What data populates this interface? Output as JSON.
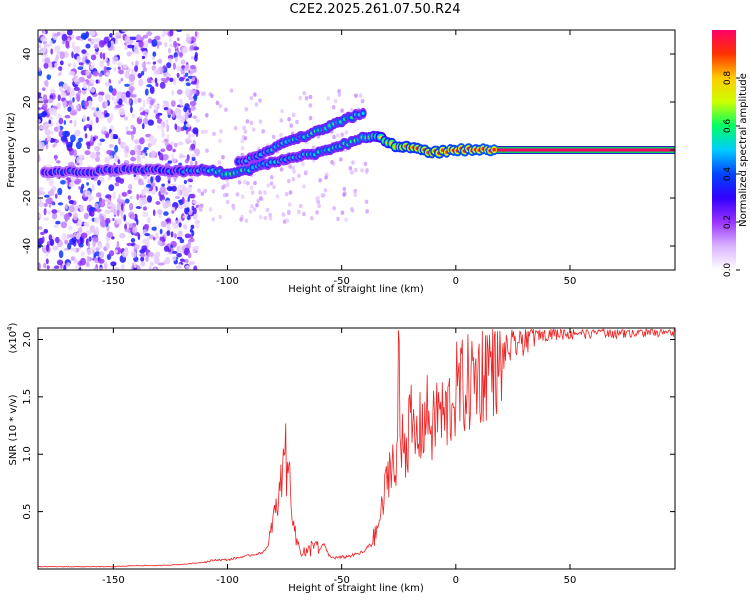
{
  "chart_data": [
    {
      "type": "heatmap",
      "title": "C2E2.2025.261.07.50.R24",
      "xlabel": "Height of straight line (km)",
      "ylabel": "Frequency (Hz)",
      "xlim": [
        -183,
        96
      ],
      "ylim": [
        -50,
        50
      ],
      "xticks": [
        -150,
        -100,
        -50,
        0,
        50
      ],
      "yticks": [
        -40,
        -20,
        0,
        20,
        40
      ],
      "colorbar": {
        "label": "Normalized spectral amplitude",
        "range": [
          0.0,
          1.0
        ],
        "ticks": [
          "0.0",
          "0.2",
          "0.4",
          "0.6",
          "0.8"
        ],
        "colors": [
          "#ffffff",
          "#d9b3ff",
          "#9933ff",
          "#3300ff",
          "#0044ff",
          "#00ccff",
          "#00ff66",
          "#ccff00",
          "#ffcc00",
          "#ff3300",
          "#ff0066"
        ]
      },
      "main_track": {
        "x": [
          -183,
          -160,
          -140,
          -120,
          -110,
          -100,
          -90,
          -80,
          -70,
          -60,
          -50,
          -40,
          -35,
          -30,
          -25,
          -20,
          -10,
          0,
          10,
          20,
          96
        ],
        "freq": [
          -9,
          -9,
          -8,
          -9,
          -8,
          -10,
          -8,
          -5,
          -3,
          -1,
          2,
          5,
          6,
          3,
          1,
          1,
          -1,
          0,
          0,
          0,
          0
        ],
        "amplitude": [
          0.35,
          0.35,
          0.35,
          0.4,
          0.45,
          0.55,
          0.5,
          0.45,
          0.45,
          0.5,
          0.5,
          0.55,
          0.6,
          0.75,
          0.8,
          0.85,
          0.85,
          0.9,
          0.9,
          0.95,
          0.95
        ]
      },
      "upper_branch": {
        "x": [
          -95,
          -85,
          -75,
          -65,
          -55,
          -45,
          -40
        ],
        "freq": [
          -5,
          -2,
          3,
          6,
          10,
          14,
          16
        ],
        "amplitude": [
          0.4,
          0.45,
          0.5,
          0.5,
          0.55,
          0.5,
          0.45
        ]
      }
    },
    {
      "type": "line",
      "xlabel": "Height of straight line (km)",
      "ylabel": "SNR (10 * v/v)",
      "multiplier": "(x10^4)",
      "multiplier_base": "(x10",
      "multiplier_exp": "4",
      "multiplier_close": ")",
      "xlim": [
        -183,
        96
      ],
      "ylim": [
        0,
        2.1
      ],
      "xticks": [
        -150,
        -100,
        -50,
        0,
        50
      ],
      "yticks": [
        0.5,
        1.0,
        1.5,
        2.0
      ],
      "ytick_labels": [
        "0.5",
        "1.0",
        "1.5",
        "2.0"
      ],
      "color": "#ff0000",
      "series": [
        {
          "name": "SNR",
          "x": [
            -183,
            -170,
            -160,
            -150,
            -140,
            -130,
            -120,
            -110,
            -105,
            -100,
            -95,
            -90,
            -85,
            -82,
            -80,
            -78,
            -76,
            -75,
            -74,
            -73,
            -72,
            -70,
            -68,
            -65,
            -62,
            -60,
            -58,
            -55,
            -50,
            -45,
            -40,
            -35,
            -32,
            -30,
            -28,
            -26,
            -25,
            -24,
            -23,
            -22,
            -20,
            -18,
            -15,
            -12,
            -10,
            -8,
            -5,
            -2,
            0,
            5,
            10,
            15,
            20,
            25,
            30,
            35,
            40,
            50,
            60,
            70,
            80,
            90,
            96
          ],
          "y": [
            0.02,
            0.02,
            0.02,
            0.02,
            0.03,
            0.03,
            0.04,
            0.06,
            0.08,
            0.08,
            0.1,
            0.12,
            0.14,
            0.2,
            0.45,
            0.55,
            0.85,
            1.28,
            0.75,
            0.9,
            0.6,
            0.25,
            0.18,
            0.12,
            0.25,
            0.15,
            0.22,
            0.1,
            0.1,
            0.12,
            0.15,
            0.3,
            0.55,
            0.8,
            1.0,
            0.7,
            1.95,
            0.9,
            1.4,
            1.0,
            1.3,
            1.1,
            1.25,
            1.35,
            1.2,
            1.4,
            1.3,
            1.45,
            1.55,
            1.6,
            1.7,
            1.8,
            1.85,
            1.95,
            2.02,
            2.05,
            2.05,
            2.06,
            2.07,
            2.07,
            2.08,
            2.08,
            2.08
          ]
        }
      ]
    }
  ]
}
